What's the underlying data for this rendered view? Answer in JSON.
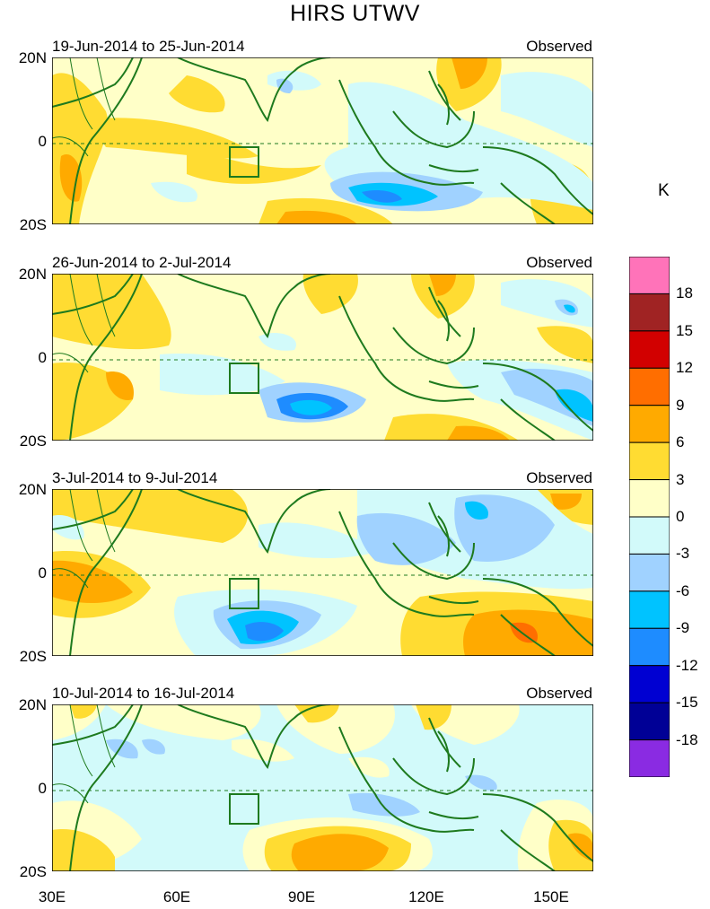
{
  "title": "HIRS UTWV",
  "panels": [
    {
      "date_range": "19-Jun-2014 to 25-Jun-2014",
      "label": "Observed"
    },
    {
      "date_range": "26-Jun-2014 to 2-Jul-2014",
      "label": "Observed"
    },
    {
      "date_range": "3-Jul-2014 to 9-Jul-2014",
      "label": "Observed"
    },
    {
      "date_range": "10-Jul-2014 to 16-Jul-2014",
      "label": "Observed"
    }
  ],
  "lat_labels": [
    "20N",
    "0",
    "20S"
  ],
  "lon_labels": [
    "30E",
    "60E",
    "90E",
    "120E",
    "150E"
  ],
  "colorbar": {
    "unit": "K",
    "ticks": [
      "18",
      "15",
      "12",
      "9",
      "6",
      "3",
      "0",
      "-3",
      "-6",
      "-9",
      "-12",
      "-15",
      "-18"
    ],
    "colors": [
      "#ff73b9",
      "#a02323",
      "#d20000",
      "#ff6e00",
      "#ffaa00",
      "#ffdc32",
      "#ffffc8",
      "#d2fafa",
      "#a0d2ff",
      "#00c3ff",
      "#1e8cff",
      "#0000d2",
      "#000096",
      "#8a2be2"
    ]
  },
  "colors": {
    "coast": "#1e7a1e",
    "equator": "#1e7a1e"
  }
}
